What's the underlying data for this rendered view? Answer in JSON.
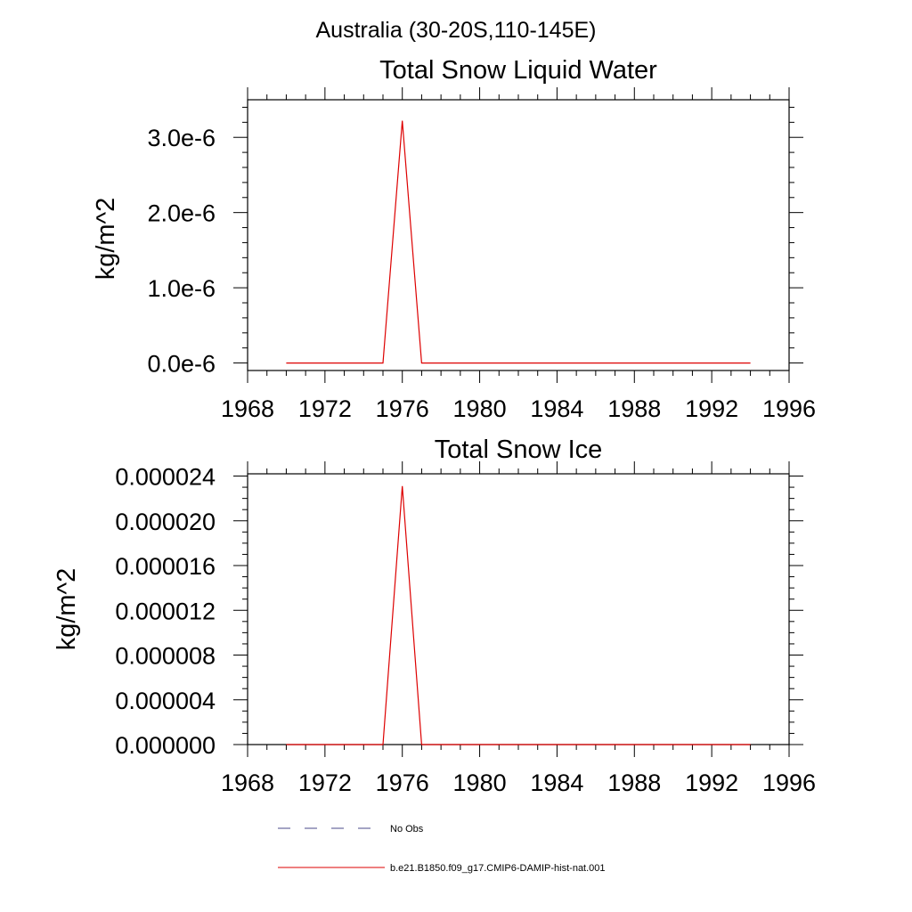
{
  "page_title": "Australia (30-20S,110-145E)",
  "chart_data": [
    {
      "type": "line",
      "title": "Total Snow Liquid Water",
      "xlabel": "",
      "ylabel": "kg/m^2",
      "xlim": [
        1968,
        1996
      ],
      "ylim": [
        -1e-07,
        3.5e-06
      ],
      "x_ticks": [
        1968,
        1972,
        1976,
        1980,
        1984,
        1988,
        1992,
        1996
      ],
      "x_tick_labels": [
        "1968",
        "1972",
        "1976",
        "1980",
        "1984",
        "1988",
        "1992",
        "1996"
      ],
      "y_ticks": [
        0,
        1e-06,
        2e-06,
        3e-06
      ],
      "y_tick_labels": [
        "0.0e-6",
        "1.0e-6",
        "2.0e-6",
        "3.0e-6"
      ],
      "grid": false,
      "series": [
        {
          "name": "b.e21.B1850.f09_g17.CMIP6-DAMIP-hist-nat.001",
          "color": "#dd0000",
          "style": "solid",
          "x": [
            1970,
            1971,
            1972,
            1973,
            1974,
            1975,
            1976,
            1977,
            1978,
            1979,
            1980,
            1981,
            1982,
            1983,
            1984,
            1985,
            1986,
            1987,
            1988,
            1989,
            1990,
            1991,
            1992,
            1993,
            1994
          ],
          "y": [
            0,
            0,
            0,
            0,
            0,
            0,
            3.22e-06,
            0,
            0,
            0,
            0,
            0,
            0,
            0,
            0,
            0,
            0,
            0,
            0,
            0,
            0,
            0,
            0,
            0,
            0
          ]
        }
      ]
    },
    {
      "type": "line",
      "title": "Total Snow Ice",
      "xlabel": "",
      "ylabel": "kg/m^2",
      "xlim": [
        1968,
        1996
      ],
      "ylim": [
        0,
        2.42e-05
      ],
      "x_ticks": [
        1968,
        1972,
        1976,
        1980,
        1984,
        1988,
        1992,
        1996
      ],
      "x_tick_labels": [
        "1968",
        "1972",
        "1976",
        "1980",
        "1984",
        "1988",
        "1992",
        "1996"
      ],
      "y_ticks": [
        0,
        4e-06,
        8e-06,
        1.2e-05,
        1.6e-05,
        2e-05,
        2.4e-05
      ],
      "y_tick_labels": [
        "0.000000",
        "0.000004",
        "0.000008",
        "0.000012",
        "0.000016",
        "0.000020",
        "0.000024"
      ],
      "grid": false,
      "series": [
        {
          "name": "b.e21.B1850.f09_g17.CMIP6-DAMIP-hist-nat.001",
          "color": "#dd0000",
          "style": "solid",
          "x": [
            1970,
            1971,
            1972,
            1973,
            1974,
            1975,
            1976,
            1977,
            1978,
            1979,
            1980,
            1981,
            1982,
            1983,
            1984,
            1985,
            1986,
            1987,
            1988,
            1989,
            1990,
            1991,
            1992,
            1993,
            1994
          ],
          "y": [
            0,
            0,
            0,
            0,
            0,
            0,
            2.31e-05,
            0,
            0,
            0,
            0,
            0,
            0,
            0,
            0,
            0,
            0,
            0,
            0,
            0,
            0,
            0,
            0,
            0,
            0
          ]
        }
      ]
    }
  ],
  "legend": {
    "placement": "bottom",
    "items": [
      {
        "label": "No Obs",
        "color": "#4a4a8a",
        "style": "dashed"
      },
      {
        "label": "b.e21.B1850.f09_g17.CMIP6-DAMIP-hist-nat.001",
        "color": "#dd0000",
        "style": "solid"
      }
    ]
  }
}
